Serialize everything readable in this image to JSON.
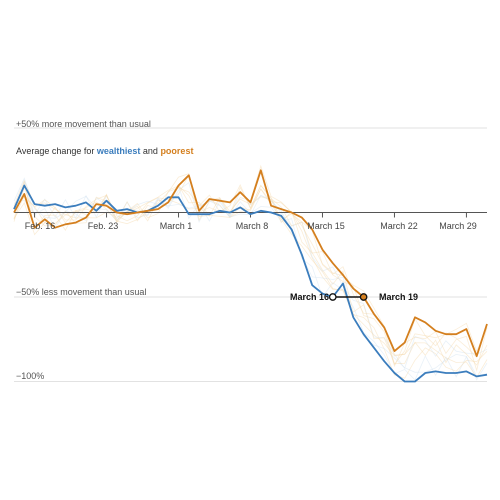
{
  "chart_data": {
    "type": "line",
    "subtitle": {
      "prefix": "Average change for ",
      "wealthiest": "wealthiest",
      "middle": " and ",
      "poorest": "poorest"
    },
    "reference_lines": [
      {
        "value": 50,
        "label": "+50% more movement than usual"
      },
      {
        "value": -50,
        "label": "−50% less movement than usual"
      },
      {
        "value": -100,
        "label": "−100%"
      }
    ],
    "x_tick_labels": [
      "Feb. 16",
      "Feb. 23",
      "March 1",
      "March 8",
      "March 15",
      "March 22",
      "March 29"
    ],
    "x_tick_dates": [
      "2020-02-16",
      "2020-02-23",
      "2020-03-01",
      "2020-03-08",
      "2020-03-15",
      "2020-03-22",
      "2020-03-29"
    ],
    "ylim": [
      -100,
      50
    ],
    "dates": [
      "2020-02-14",
      "2020-02-15",
      "2020-02-16",
      "2020-02-17",
      "2020-02-18",
      "2020-02-19",
      "2020-02-20",
      "2020-02-21",
      "2020-02-22",
      "2020-02-23",
      "2020-02-24",
      "2020-02-25",
      "2020-02-26",
      "2020-02-27",
      "2020-02-28",
      "2020-02-29",
      "2020-03-01",
      "2020-03-02",
      "2020-03-03",
      "2020-03-04",
      "2020-03-05",
      "2020-03-06",
      "2020-03-07",
      "2020-03-08",
      "2020-03-09",
      "2020-03-10",
      "2020-03-11",
      "2020-03-12",
      "2020-03-13",
      "2020-03-14",
      "2020-03-15",
      "2020-03-16",
      "2020-03-17",
      "2020-03-18",
      "2020-03-19",
      "2020-03-20",
      "2020-03-21",
      "2020-03-22",
      "2020-03-23",
      "2020-03-24",
      "2020-03-25",
      "2020-03-26",
      "2020-03-27",
      "2020-03-28",
      "2020-03-29",
      "2020-03-30",
      "2020-03-31"
    ],
    "series": [
      {
        "name": "wealthiest",
        "color": "#3b7dbd",
        "values": [
          2,
          16,
          5,
          4,
          5,
          3,
          4,
          6,
          1,
          7,
          1,
          2,
          0,
          1,
          4,
          9,
          9,
          -1,
          -1,
          -1,
          1,
          0,
          3,
          -1,
          1,
          0,
          -2,
          -10,
          -25,
          -43,
          -48,
          -50,
          -42,
          -62,
          -72,
          -80,
          -88,
          -95,
          -100,
          -100,
          -95,
          -94,
          -95,
          -95,
          -94,
          -97,
          -96
        ]
      },
      {
        "name": "poorest",
        "color": "#d47f1e",
        "values": [
          0,
          11,
          -9,
          -4,
          -9,
          -7,
          -6,
          -3,
          5,
          4,
          0,
          -1,
          0,
          1,
          2,
          6,
          16,
          22,
          1,
          8,
          7,
          6,
          12,
          6,
          25,
          4,
          2,
          0,
          -3,
          -10,
          -22,
          -30,
          -37,
          -45,
          -50,
          -60,
          -68,
          -82,
          -77,
          -62,
          -65,
          -70,
          -72,
          -72,
          -69,
          -85,
          -66
        ]
      }
    ],
    "annotations": [
      {
        "label": "March 16",
        "date": "2020-03-16",
        "series": "wealthiest"
      },
      {
        "label": "March 19",
        "date": "2020-03-19",
        "series": "poorest"
      }
    ],
    "colors": {
      "wealthiest": "#3b7dbd",
      "poorest": "#d47f1e",
      "background_lines": "#f3d6a8"
    }
  }
}
